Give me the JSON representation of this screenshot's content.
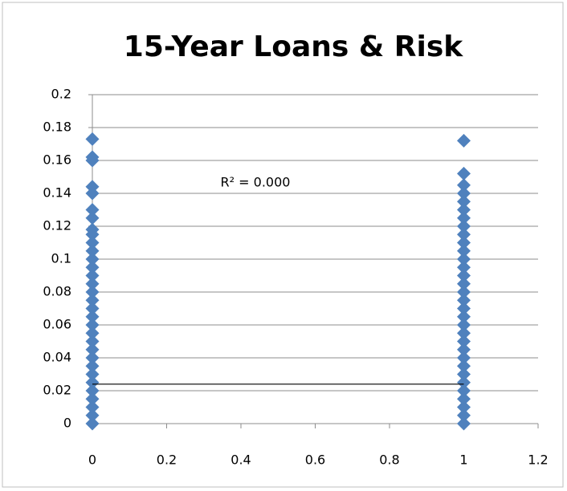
{
  "chart_data": {
    "type": "scatter",
    "title": "15-Year Loans & Risk",
    "annotation": "R² = 0.000",
    "color": "#4f81bd",
    "x": [
      0,
      0,
      0,
      0,
      0,
      0,
      0,
      0,
      0,
      0,
      0,
      0,
      0,
      0,
      0,
      0,
      0,
      0,
      0,
      0,
      0,
      0,
      0,
      0,
      0,
      0,
      0,
      0,
      0,
      0,
      0,
      0,
      1,
      1,
      1,
      1,
      1,
      1,
      1,
      1,
      1,
      1,
      1,
      1,
      1,
      1,
      1,
      1,
      1,
      1,
      1,
      1,
      1,
      1,
      1,
      1,
      1,
      1,
      1,
      1,
      1,
      1,
      1,
      1
    ],
    "values": [
      0,
      0.005,
      0.01,
      0.015,
      0.02,
      0.025,
      0.03,
      0.035,
      0.04,
      0.045,
      0.05,
      0.055,
      0.06,
      0.065,
      0.07,
      0.075,
      0.08,
      0.085,
      0.09,
      0.095,
      0.1,
      0.105,
      0.11,
      0.115,
      0.118,
      0.125,
      0.13,
      0.14,
      0.144,
      0.16,
      0.162,
      0.173,
      0,
      0.005,
      0.01,
      0.015,
      0.02,
      0.025,
      0.03,
      0.035,
      0.04,
      0.045,
      0.05,
      0.055,
      0.06,
      0.065,
      0.07,
      0.075,
      0.08,
      0.085,
      0.09,
      0.095,
      0.1,
      0.105,
      0.11,
      0.115,
      0.12,
      0.125,
      0.13,
      0.135,
      0.14,
      0.145,
      0.152,
      0.172
    ],
    "trendline": {
      "x": [
        0,
        1
      ],
      "y": [
        0.024,
        0.024
      ],
      "color": "#000000"
    },
    "xlim": [
      0,
      1.2
    ],
    "xticks": [
      0,
      0.2,
      0.4,
      0.6,
      0.8,
      1,
      1.2
    ],
    "ylim": [
      0,
      0.2
    ],
    "yticks": [
      0,
      0.02,
      0.04,
      0.06,
      0.08,
      0.1,
      0.12,
      0.14,
      0.16,
      0.18,
      0.2
    ],
    "grid": true
  }
}
